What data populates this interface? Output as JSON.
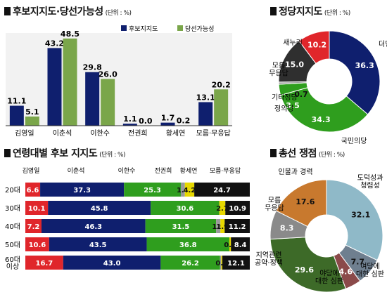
{
  "colors": {
    "navy": "#0f1f6e",
    "green": "#7aa64a",
    "red": "#e0262b",
    "bright_green": "#2f9e1e",
    "black": "#111111",
    "gray": "#9a9a9a",
    "yellow": "#e7d800",
    "pie_darkgray": "#2f2f2f",
    "pie_midgray": "#8a8a8a",
    "pie_orange": "#c8792e",
    "pie_lightblue": "#8fb9c8",
    "pie_darkgreen": "#3d6a28",
    "pie_wine": "#8b4a4a",
    "pie_slate": "#6f7f8f"
  },
  "chart_data": [
    {
      "type": "bar",
      "title": "후보지지도·당선가능성",
      "unit": "(단위 : %)",
      "categories": [
        "김영일",
        "이춘석",
        "이한수",
        "전권희",
        "황세연",
        "모름·무응답"
      ],
      "series": [
        {
          "name": "후보지지도",
          "values": [
            11.1,
            43.2,
            29.8,
            1.1,
            1.7,
            13.1
          ]
        },
        {
          "name": "당선가능성",
          "values": [
            5.1,
            48.5,
            26.0,
            0.0,
            0.2,
            20.2
          ]
        }
      ],
      "ylim": [
        0,
        50
      ],
      "legend": "top-right",
      "grid": false
    },
    {
      "type": "pie",
      "variant": "donut",
      "title": "정당지지도",
      "unit": "(단위 : %)",
      "slices": [
        {
          "label": "더민주",
          "value": 36.3
        },
        {
          "label": "국민의당",
          "value": 34.3
        },
        {
          "label": "정의당",
          "value": 3.5
        },
        {
          "label": "기타정당",
          "value": 0.7
        },
        {
          "label": "모름\n무응답",
          "value": 15.0
        },
        {
          "label": "새누리",
          "value": 10.2
        }
      ]
    },
    {
      "type": "bar",
      "variant": "stacked-horizontal",
      "title": "연령대별 후보 지지도",
      "unit": "(단위 : %)",
      "series_names": [
        "김영일",
        "이춘석",
        "이한수",
        "전권희",
        "황세연",
        "모름·무응답"
      ],
      "rows": [
        {
          "label": "20대",
          "values": [
            6.6,
            37.3,
            25.3,
            1.8,
            4.2,
            24.7
          ],
          "labels": [
            "6.6",
            "37.3",
            "25.3",
            "1.8",
            "4.2",
            "24.7"
          ]
        },
        {
          "label": "30대",
          "values": [
            10.1,
            45.8,
            30.6,
            0.0,
            2.7,
            10.9
          ],
          "labels": [
            "10.1",
            "45.8",
            "30.6",
            "",
            "2.7",
            "10.9"
          ]
        },
        {
          "label": "40대",
          "values": [
            7.2,
            46.3,
            31.5,
            1.9,
            1.9,
            11.2
          ],
          "labels": [
            "7.2",
            "46.3",
            "31.5",
            "1.9",
            "1.9",
            "11.2"
          ]
        },
        {
          "label": "50대",
          "values": [
            10.6,
            43.5,
            36.8,
            0.0,
            0.7,
            8.4
          ],
          "labels": [
            "10.6",
            "43.5",
            "36.8",
            "",
            "0.7",
            "8.4"
          ]
        },
        {
          "label": "60대\n이상",
          "values": [
            16.7,
            43.0,
            26.2,
            0.5,
            0.5,
            12.1
          ],
          "labels": [
            "16.7",
            "43.0",
            "26.2",
            "",
            "0.5",
            "12.1"
          ]
        }
      ]
    },
    {
      "type": "pie",
      "variant": "donut",
      "title": "총선 쟁점",
      "unit": "(단위 : %)",
      "slices": [
        {
          "label": "도덕성과\n청렴성",
          "value": 32.1
        },
        {
          "label": "여당에\n대한 심판",
          "value": 7.7
        },
        {
          "label": "야당에\n대한 심판",
          "value": 4.6
        },
        {
          "label": "지역관련\n공약·정책",
          "value": 29.6
        },
        {
          "label": "모름\n무응답",
          "value": 8.3
        },
        {
          "label": "인물과 경력",
          "value": 17.6
        }
      ]
    }
  ]
}
